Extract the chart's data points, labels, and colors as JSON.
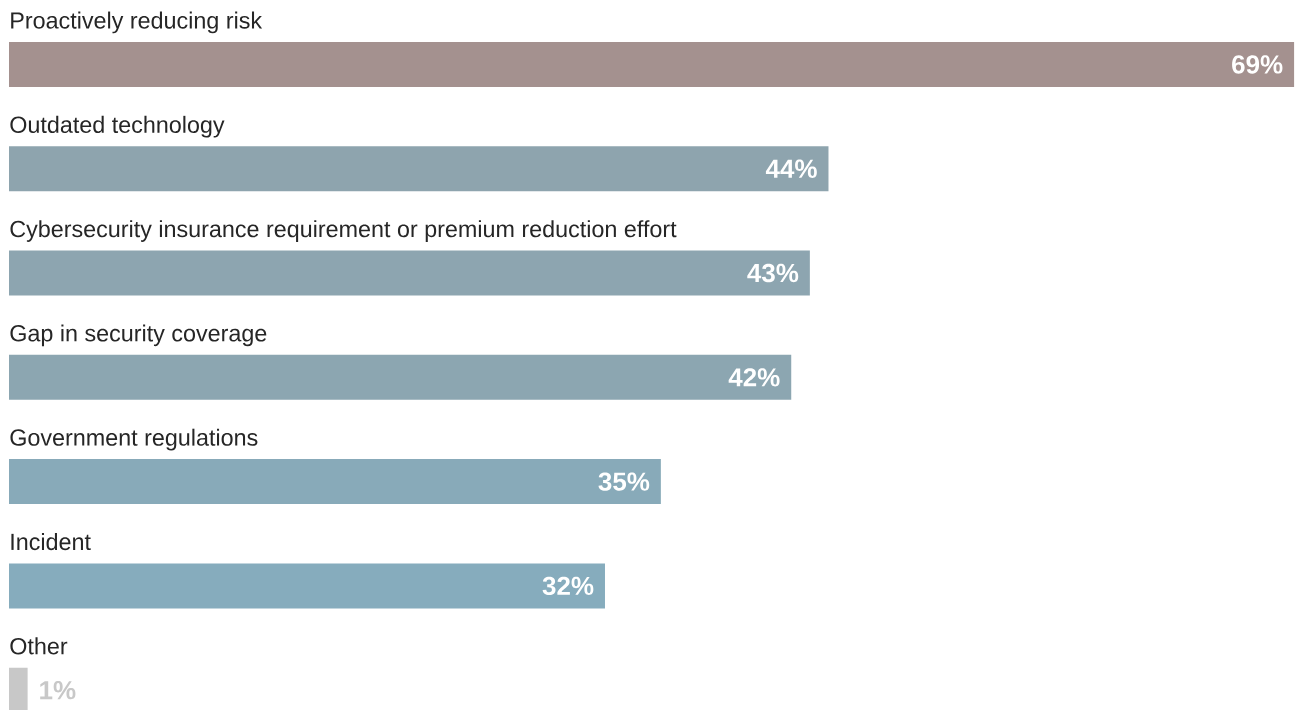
{
  "chart_data": {
    "type": "bar",
    "orientation": "horizontal",
    "tick_labels": false,
    "categories": [
      "Proactively reducing risk",
      "Outdated technology",
      "Cybersecurity insurance requirement or premium reduction effort",
      "Gap in security coverage",
      "Government regulations",
      "Incident",
      "Other"
    ],
    "values": [
      69,
      44,
      43,
      42,
      35,
      32,
      1
    ],
    "value_labels": [
      "69%",
      "44%",
      "43%",
      "42%",
      "35%",
      "32%",
      "1%"
    ],
    "colors": [
      "#a4918f",
      "#8ea4ae",
      "#8da5b0",
      "#8ca6b1",
      "#88aab9",
      "#86acbd",
      "#c8c8c8"
    ]
  }
}
